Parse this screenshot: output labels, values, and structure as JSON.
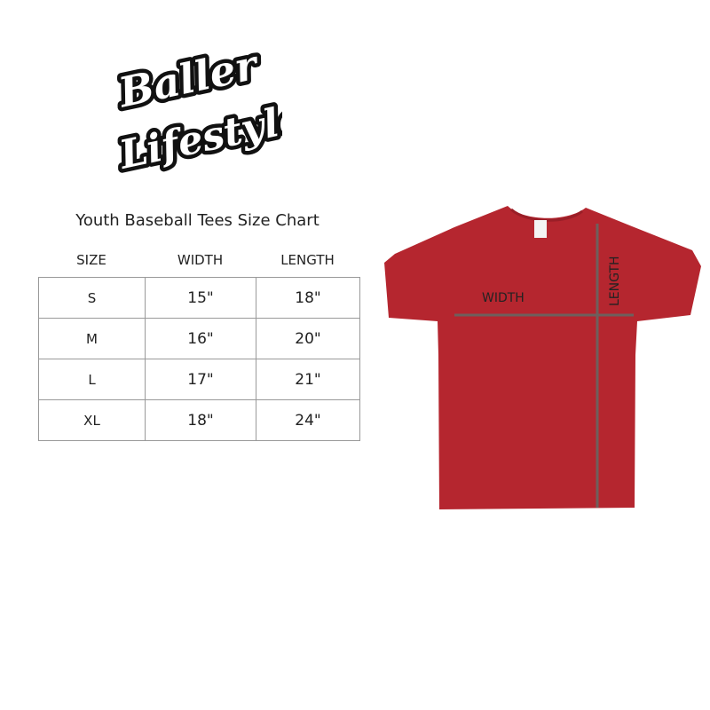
{
  "logo": {
    "line1": "Baller",
    "line2": "Lifestyle"
  },
  "title": "Youth Baseball Tees Size Chart",
  "table": {
    "headers": [
      "SIZE",
      "WIDTH",
      "LENGTH"
    ],
    "rows": [
      [
        "S",
        "15\"",
        "18\""
      ],
      [
        "M",
        "16\"",
        "20\""
      ],
      [
        "L",
        "17\"",
        "21\""
      ],
      [
        "XL",
        "18\"",
        "24\""
      ]
    ]
  },
  "shirt": {
    "color": "#b5262f",
    "width_label": "WIDTH",
    "length_label": "LENGTH",
    "line_color": "#6e5f5c"
  }
}
